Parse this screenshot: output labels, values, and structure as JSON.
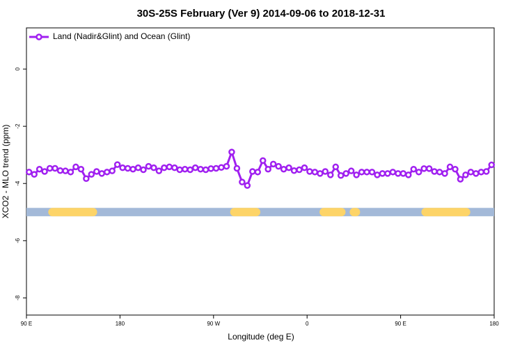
{
  "chart_data": {
    "type": "line",
    "title": "30S-25S February (Ver 9)   2014-09-06 to 2018-12-31",
    "xlabel": "Longitude (deg E)",
    "ylabel": "XCO2 - MLO trend (ppm)",
    "xlim": [
      90,
      540
    ],
    "xticks": [
      {
        "value": 90,
        "label": "90 E"
      },
      180,
      {
        "value": 270,
        "label": "90 W"
      },
      {
        "value": 360,
        "label": "0"
      },
      {
        "value": 450,
        "label": "90 E"
      },
      {
        "value": 540,
        "label": "180"
      }
    ],
    "ylim": [
      -8.6,
      1.44
    ],
    "yticks": [
      -8,
      -6,
      -4,
      -2,
      0
    ],
    "legend": "top-left",
    "x": [
      92.5,
      97.5,
      102.5,
      107.5,
      112.5,
      117.5,
      122.5,
      127.5,
      132.5,
      137.5,
      142.5,
      147.5,
      152.5,
      157.5,
      162.5,
      167.5,
      172.5,
      177.5,
      182.5,
      187.5,
      192.5,
      197.5,
      202.5,
      207.5,
      212.5,
      217.5,
      222.5,
      227.5,
      232.5,
      237.5,
      242.5,
      247.5,
      252.5,
      257.5,
      262.5,
      267.5,
      272.5,
      277.5,
      282.5,
      287.5,
      292.5,
      297.5,
      302.5,
      307.5,
      312.5,
      317.5,
      322.5,
      327.5,
      332.5,
      337.5,
      342.5,
      347.5,
      352.5,
      357.5,
      362.5,
      367.5,
      372.5,
      377.5,
      382.5,
      387.5,
      392.5,
      397.5,
      402.5,
      407.5,
      412.5,
      417.5,
      422.5,
      427.5,
      432.5,
      437.5,
      442.5,
      447.5,
      452.5,
      457.5,
      462.5,
      467.5,
      472.5,
      477.5,
      482.5,
      487.5,
      492.5,
      497.5,
      502.5,
      507.5,
      512.5,
      517.5,
      522.5,
      527.5,
      532.5,
      537.5
    ],
    "series": [
      {
        "name": "Land (Nadir&Glint) and Ocean (Glint)",
        "color": "#a020f0",
        "values": [
          -3.6,
          -3.68,
          -3.5,
          -3.58,
          -3.47,
          -3.47,
          -3.55,
          -3.56,
          -3.6,
          -3.42,
          -3.5,
          -3.83,
          -3.68,
          -3.58,
          -3.65,
          -3.6,
          -3.56,
          -3.34,
          -3.45,
          -3.47,
          -3.5,
          -3.45,
          -3.52,
          -3.4,
          -3.45,
          -3.56,
          -3.45,
          -3.42,
          -3.45,
          -3.52,
          -3.5,
          -3.52,
          -3.45,
          -3.5,
          -3.52,
          -3.48,
          -3.47,
          -3.44,
          -3.4,
          -2.9,
          -3.47,
          -3.95,
          -4.07,
          -3.58,
          -3.6,
          -3.2,
          -3.5,
          -3.32,
          -3.4,
          -3.5,
          -3.45,
          -3.55,
          -3.52,
          -3.45,
          -3.58,
          -3.6,
          -3.65,
          -3.58,
          -3.7,
          -3.42,
          -3.72,
          -3.65,
          -3.56,
          -3.7,
          -3.6,
          -3.6,
          -3.6,
          -3.7,
          -3.65,
          -3.65,
          -3.6,
          -3.65,
          -3.65,
          -3.7,
          -3.5,
          -3.6,
          -3.48,
          -3.48,
          -3.58,
          -3.6,
          -3.65,
          -3.42,
          -3.5,
          -3.85,
          -3.7,
          -3.6,
          -3.65,
          -3.6,
          -3.58,
          -3.35
        ]
      }
    ],
    "band_y": -5,
    "ocean_color": "#a3b9d8",
    "land_color": "#fdd468",
    "land_segments": [
      [
        115,
        154
      ],
      [
        290,
        311
      ],
      [
        376,
        393
      ],
      [
        405,
        407
      ],
      [
        474,
        513
      ]
    ]
  }
}
